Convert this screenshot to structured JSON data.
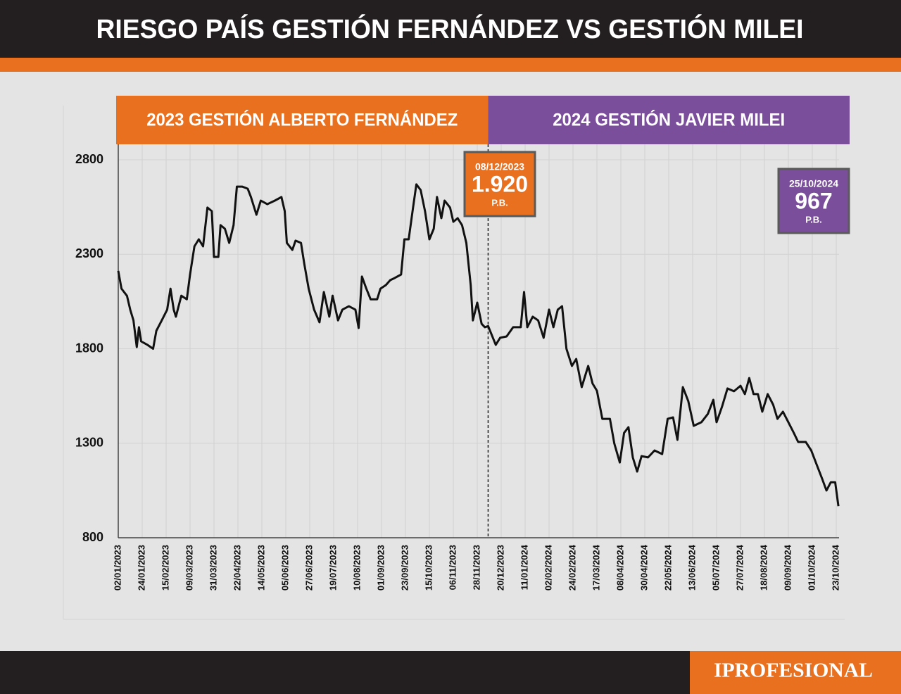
{
  "chart_data": {
    "type": "line",
    "title": "RIESGO PAÍS GESTIÓN FERNÁNDEZ VS GESTIÓN MILEI",
    "brand": "IPROFESIONAL",
    "periods": [
      {
        "label": "2023 GESTIÓN ALBERTO FERNÁNDEZ",
        "color": "#e8701e"
      },
      {
        "label": "2024 GESTIÓN JAVIER MILEI",
        "color": "#7b4e9b"
      }
    ],
    "annotations": [
      {
        "label": "08/12/2023",
        "value": 1920,
        "value_label": "1.920",
        "unit": "P.B.",
        "color": "#e8701e"
      },
      {
        "label": "25/10/2024",
        "value": 967,
        "unit": "P.B.",
        "color": "#7b4e9b"
      }
    ],
    "x": [
      "02/01/2023",
      "05/01/2023",
      "10/01/2023",
      "13/01/2023",
      "16/01/2023",
      "19/01/2023",
      "21/01/2023",
      "23/01/2023",
      "29/01/2023",
      "03/02/2023",
      "06/02/2023",
      "11/02/2023",
      "16/02/2023",
      "19/02/2023",
      "22/02/2023",
      "24/02/2023",
      "01/03/2023",
      "06/03/2023",
      "09/03/2023",
      "13/03/2023",
      "17/03/2023",
      "21/03/2023",
      "25/03/2023",
      "29/03/2023",
      "31/03/2023",
      "04/04/2023",
      "06/04/2023",
      "10/04/2023",
      "14/04/2023",
      "18/04/2023",
      "21/04/2023",
      "26/04/2023",
      "01/05/2023",
      "04/05/2023",
      "09/05/2023",
      "13/05/2023",
      "19/05/2023",
      "26/05/2023",
      "01/06/2023",
      "04/06/2023",
      "06/06/2023",
      "11/06/2023",
      "14/06/2023",
      "19/06/2023",
      "22/06/2023",
      "26/06/2023",
      "01/07/2023",
      "06/07/2023",
      "10/07/2023",
      "15/07/2023",
      "18/07/2023",
      "23/07/2023",
      "27/07/2023",
      "02/08/2023",
      "08/08/2023",
      "11/08/2023",
      "14/08/2023",
      "18/08/2023",
      "22/08/2023",
      "28/08/2023",
      "31/08/2023",
      "05/09/2023",
      "09/09/2023",
      "13/09/2023",
      "19/09/2023",
      "22/09/2023",
      "26/09/2023",
      "30/09/2023",
      "03/10/2023",
      "07/10/2023",
      "11/10/2023",
      "15/10/2023",
      "19/10/2023",
      "22/10/2023",
      "26/10/2023",
      "29/10/2023",
      "03/11/2023",
      "06/11/2023",
      "10/11/2023",
      "14/11/2023",
      "18/11/2023",
      "22/11/2023",
      "24/11/2023",
      "28/11/2023",
      "02/12/2023",
      "05/12/2023",
      "08/12/2023",
      "15/12/2023",
      "19/12/2023",
      "25/12/2023",
      "31/12/2023",
      "07/01/2024",
      "10/01/2024",
      "13/01/2024",
      "18/01/2024",
      "23/01/2024",
      "28/01/2024",
      "02/02/2024",
      "06/02/2024",
      "10/02/2024",
      "14/02/2024",
      "18/02/2024",
      "23/02/2024",
      "27/02/2024",
      "03/03/2024",
      "09/03/2024",
      "13/03/2024",
      "17/03/2024",
      "22/03/2024",
      "29/03/2024",
      "02/04/2024",
      "07/04/2024",
      "11/04/2024",
      "15/04/2024",
      "19/04/2024",
      "23/04/2024",
      "27/04/2024",
      "03/05/2024",
      "09/05/2024",
      "16/05/2024",
      "21/05/2024",
      "26/05/2024",
      "30/05/2024",
      "04/06/2024",
      "09/06/2024",
      "14/06/2024",
      "21/06/2024",
      "27/06/2024",
      "02/07/2024",
      "05/07/2024",
      "10/07/2024",
      "15/07/2024",
      "21/07/2024",
      "27/07/2024",
      "31/07/2024",
      "04/08/2024",
      "08/08/2024",
      "12/08/2024",
      "16/08/2024",
      "21/08/2024",
      "26/08/2024",
      "30/08/2024",
      "04/09/2024",
      "09/09/2024",
      "14/09/2024",
      "18/09/2024",
      "25/09/2024",
      "30/09/2024",
      "05/10/2024",
      "10/10/2024",
      "14/10/2024",
      "18/10/2024",
      "22/10/2024",
      "25/10/2024"
    ],
    "series": [
      {
        "color": "#111111",
        "values": [
          2212,
          2118,
          2080,
          2007,
          1950,
          1809,
          1914,
          1839,
          1820,
          1800,
          1895,
          1950,
          2007,
          2118,
          2007,
          1970,
          2081,
          2062,
          2193,
          2342,
          2379,
          2342,
          2547,
          2528,
          2286,
          2286,
          2454,
          2435,
          2360,
          2454,
          2658,
          2658,
          2647,
          2603,
          2509,
          2584,
          2565,
          2584,
          2603,
          2528,
          2360,
          2323,
          2372,
          2360,
          2249,
          2118,
          2007,
          1940,
          2100,
          1970,
          2081,
          1950,
          2007,
          2025,
          2007,
          1910,
          2182,
          2118,
          2062,
          2062,
          2118,
          2137,
          2163,
          2174,
          2193,
          2379,
          2379,
          2547,
          2670,
          2640,
          2528,
          2379,
          2435,
          2603,
          2491,
          2584,
          2547,
          2472,
          2491,
          2454,
          2360,
          2137,
          1950,
          2044,
          1932,
          1914,
          1920,
          1821,
          1858,
          1865,
          1914,
          1914,
          2100,
          1914,
          1970,
          1950,
          1858,
          2007,
          1914,
          2007,
          2025,
          1800,
          1709,
          1746,
          1597,
          1709,
          1616,
          1578,
          1429,
          1429,
          1299,
          1198,
          1355,
          1385,
          1225,
          1150,
          1232,
          1225,
          1262,
          1243,
          1429,
          1437,
          1318,
          1597,
          1523,
          1392,
          1411,
          1455,
          1530,
          1411,
          1493,
          1590,
          1575,
          1604,
          1560,
          1645,
          1560,
          1560,
          1467,
          1560,
          1504,
          1429,
          1467,
          1411,
          1355,
          1307,
          1307,
          1262,
          1187,
          1113,
          1050,
          1094,
          1094,
          967
        ]
      }
    ],
    "xlim": [
      "02/01/2023",
      "23/10/2024"
    ],
    "xticks": [
      "02/01/2023",
      "24/01/2023",
      "15/02/2023",
      "09/03/2023",
      "31/03/2023",
      "22/04/2023",
      "14/05/2023",
      "05/06/2023",
      "27/06/2023",
      "19/07/2023",
      "10/08/2023",
      "01/09/2023",
      "23/09/2023",
      "15/10/2023",
      "06/11/2023",
      "28/11/2023",
      "20/12/2023",
      "11/01/2024",
      "02/02/2024",
      "24/02/2024",
      "17/03/2024",
      "08/04/2024",
      "30/04/2024",
      "22/05/2024",
      "13/06/2024",
      "05/07/2024",
      "27/07/2024",
      "18/08/2024",
      "09/09/2024",
      "01/10/2024",
      "23/10/2024"
    ],
    "ylim": [
      800,
      2800
    ],
    "yticks": [
      800,
      1300,
      1800,
      2300,
      2800
    ],
    "grid": true
  }
}
